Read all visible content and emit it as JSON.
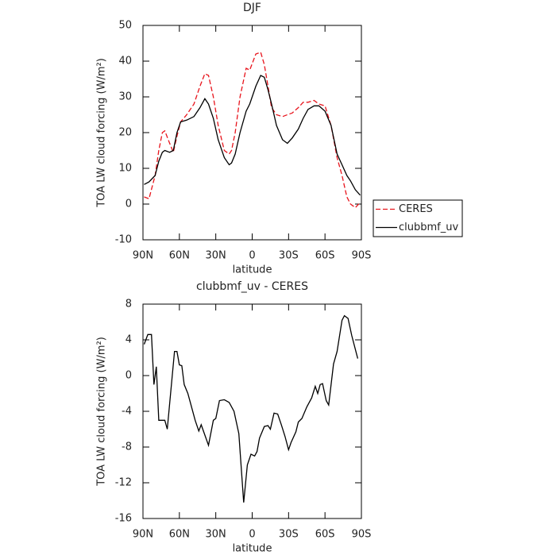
{
  "chart_data": [
    {
      "type": "line",
      "title": "DJF",
      "xlabel": "latitude",
      "ylabel": "TOA LW cloud forcing (W/m²)",
      "x": [
        89,
        85,
        80,
        77,
        74,
        72,
        68,
        65,
        62,
        59,
        54,
        48,
        43,
        39,
        36,
        32,
        28,
        23,
        19,
        17,
        14,
        10,
        5,
        2,
        -3,
        -7,
        -10,
        -13,
        -16,
        -20,
        -25,
        -29,
        -33,
        -38,
        -42,
        -46,
        -51,
        -55,
        -60,
        -65,
        -70,
        -74,
        -78,
        -81,
        -85,
        -89
      ],
      "series": [
        {
          "name": "CERES",
          "color": "#e8141c",
          "linestyle": "dashed",
          "values": [
            2,
            1.5,
            8,
            15,
            20,
            20.5,
            17,
            14.5,
            19,
            23,
            25,
            28,
            33,
            36.5,
            36,
            30,
            22,
            15,
            14,
            15,
            20,
            30,
            38,
            37.5,
            42,
            42.5,
            39,
            33,
            27,
            25,
            24.5,
            25,
            25.5,
            27,
            28.5,
            28.5,
            29,
            28,
            27.5,
            22,
            13,
            8,
            2,
            0,
            -1,
            0.5
          ]
        },
        {
          "name": "clubbmf_uv",
          "color": "#000000",
          "linestyle": "solid",
          "values": [
            5.5,
            6.2,
            8,
            12,
            14.5,
            15,
            14.5,
            15,
            20,
            23,
            23.5,
            24.5,
            27,
            29.5,
            28,
            24,
            18,
            13,
            11,
            11.5,
            14,
            20,
            26,
            28,
            33,
            36,
            35.5,
            32,
            28,
            22,
            18,
            17,
            18.5,
            21,
            24,
            26.5,
            27.5,
            27.5,
            26,
            22,
            14,
            11,
            8,
            6.5,
            4,
            2.5
          ]
        }
      ],
      "xlim": [
        90,
        -90
      ],
      "xticks": [
        {
          "value": 90,
          "label": "90N"
        },
        {
          "value": 60,
          "label": "60N"
        },
        {
          "value": 30,
          "label": "30N"
        },
        0,
        {
          "value": -30,
          "label": "30S"
        },
        {
          "value": -60,
          "label": "60S"
        },
        {
          "value": -90,
          "label": "90S"
        }
      ],
      "ylim": [
        -10,
        50
      ],
      "yticks": [
        -10,
        0,
        10,
        20,
        30,
        40,
        50
      ],
      "legend": "right"
    },
    {
      "type": "line",
      "title": "clubbmf_uv - CERES",
      "xlabel": "latitude",
      "ylabel": "TOA LW cloud forcing (W/m²)",
      "x": [
        89,
        86,
        83,
        81,
        79,
        77,
        74,
        72,
        70,
        64,
        62,
        60,
        58,
        56,
        53,
        51,
        47,
        44,
        42,
        36,
        32,
        30,
        27,
        23,
        19,
        15,
        11,
        7,
        4,
        1,
        -2,
        -4,
        -6,
        -10,
        -13,
        -15,
        -18,
        -21,
        -24,
        -27,
        -30,
        -32,
        -36,
        -38,
        -41,
        -45,
        -49,
        -52,
        -54,
        -56,
        -58,
        -61,
        -63,
        -67,
        -70,
        -74,
        -76,
        -79,
        -82,
        -87
      ],
      "values": [
        3.5,
        4.6,
        4.6,
        -1,
        1,
        -5,
        -5,
        -5,
        -6,
        2.7,
        2.7,
        1.2,
        1.1,
        -1,
        -2,
        -3,
        -5,
        -6.2,
        -5.5,
        -7.8,
        -5,
        -4.8,
        -2.8,
        -2.7,
        -3,
        -4,
        -6.5,
        -14.2,
        -10,
        -8.8,
        -9,
        -8.5,
        -7,
        -5.7,
        -5.6,
        -6,
        -4.2,
        -4.3,
        -5.5,
        -6.8,
        -8.3,
        -7.5,
        -6.3,
        -5.2,
        -4.8,
        -3.5,
        -2.5,
        -1.2,
        -2,
        -1,
        -0.9,
        -2.8,
        -3.3,
        1.3,
        2.7,
        6.2,
        6.7,
        6.4,
        4.5,
        1.9
      ],
      "color": "#000000",
      "xlim": [
        90,
        -90
      ],
      "xticks": [
        {
          "value": 90,
          "label": "90N"
        },
        {
          "value": 60,
          "label": "60N"
        },
        {
          "value": 30,
          "label": "30N"
        },
        0,
        {
          "value": -30,
          "label": "30S"
        },
        {
          "value": -60,
          "label": "60S"
        },
        {
          "value": -90,
          "label": "90S"
        }
      ],
      "ylim": [
        -16,
        8
      ],
      "yticks": [
        -16,
        -12,
        -8,
        -4,
        0,
        4,
        8
      ]
    }
  ]
}
